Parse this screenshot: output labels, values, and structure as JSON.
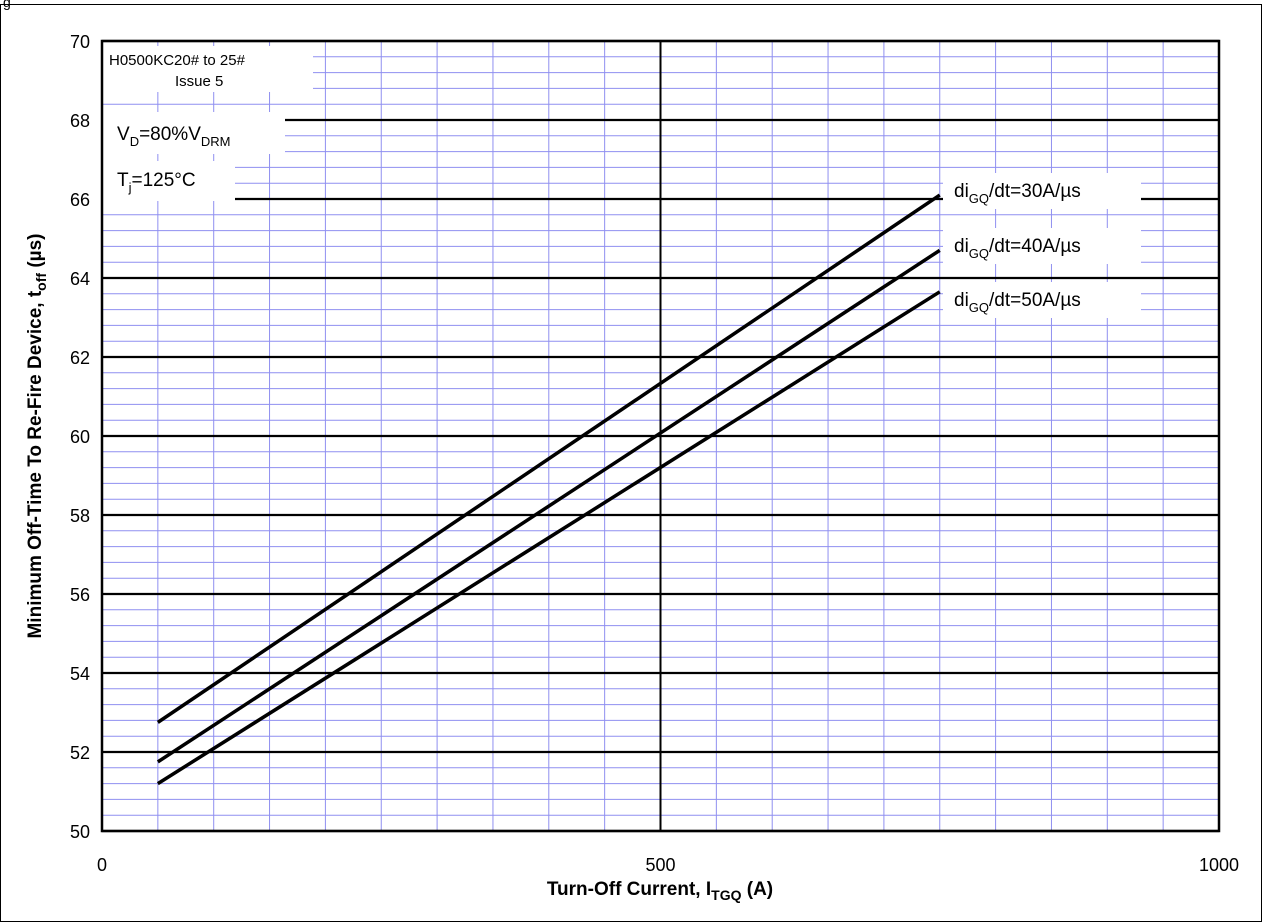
{
  "figure_label": "g",
  "chart_data": {
    "type": "line",
    "xlabel": "Turn-Off Current, I",
    "xlabel_sub": "TGQ",
    "xlabel_unit": " (A)",
    "ylabel": "Minimum Off-Time To Re-Fire Device, t",
    "ylabel_sub": "off",
    "ylabel_unit": " (µs)",
    "xlim": [
      0,
      1000
    ],
    "ylim": [
      50,
      70
    ],
    "x_ticks": [
      0,
      500,
      1000
    ],
    "y_ticks": [
      50,
      52,
      54,
      56,
      58,
      60,
      62,
      64,
      66,
      68,
      70
    ],
    "grid": "on",
    "series": [
      {
        "name": "diGQ/dt=30A/µs",
        "label_main": "di",
        "label_sub": "GQ",
        "label_rest": "/dt=30A/µs",
        "x": [
          50,
          750
        ],
        "y": [
          52.75,
          66.1
        ]
      },
      {
        "name": "diGQ/dt=40A/µs",
        "label_main": "di",
        "label_sub": "GQ",
        "label_rest": "/dt=40A/µs",
        "x": [
          50,
          750
        ],
        "y": [
          51.75,
          64.7
        ]
      },
      {
        "name": "diGQ/dt=50A/µs",
        "label_main": "di",
        "label_sub": "GQ",
        "label_rest": "/dt=50A/µs",
        "x": [
          50,
          750
        ],
        "y": [
          51.2,
          63.65
        ]
      }
    ],
    "annotations": {
      "device_line1": "H0500KC20# to 25#",
      "device_line2": "Issue 5",
      "vd_main": "V",
      "vd_sub1": "D",
      "vd_mid": "=80%V",
      "vd_sub2": "DRM",
      "tj_main": "T",
      "tj_sub": "j",
      "tj_rest": "=125°C"
    }
  },
  "colors": {
    "minor_grid": "#8f8ff0",
    "major_grid": "#000000",
    "curve": "#000000"
  }
}
